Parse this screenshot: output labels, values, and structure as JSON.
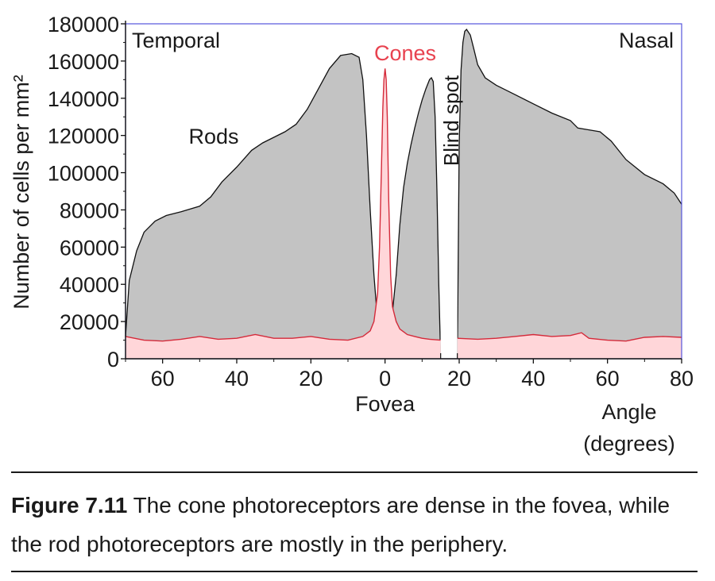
{
  "chart_data": {
    "type": "area",
    "ylabel": "Number of cells per mm²",
    "ylim": [
      0,
      180000
    ],
    "yticks": [
      0,
      20000,
      40000,
      60000,
      80000,
      100000,
      120000,
      140000,
      160000,
      180000
    ],
    "xlim": [
      -70,
      80
    ],
    "xticks": [
      -60,
      -40,
      -20,
      0,
      20,
      40,
      60,
      80
    ],
    "xtick_labels": [
      "60",
      "40",
      "20",
      "0",
      "20",
      "40",
      "60",
      "80"
    ],
    "xlabel_center": "Fovea",
    "xlabel_right": "Angle\n(degrees)",
    "side_labels": {
      "left": "Temporal",
      "right": "Nasal"
    },
    "annotations": {
      "rods": "Rods",
      "cones": "Cones",
      "blind_spot": "Blind spot"
    },
    "blind_spot_range": [
      15,
      19.5
    ],
    "colors": {
      "rods_fill": "#c3c3c3",
      "cones_fill": "#ffd6d9",
      "cones_line": "#d42a3a",
      "cones_label": "#e8424f",
      "axis": "#5555dd"
    },
    "series": [
      {
        "name": "Rods",
        "segments": [
          {
            "x": [
              -70,
              -69,
              -67,
              -65,
              -62,
              -59,
              -55,
              -50,
              -47,
              -44,
              -40,
              -36,
              -33,
              -30,
              -27,
              -24,
              -21,
              -18,
              -15,
              -12,
              -9,
              -7,
              -6,
              -5,
              -4,
              -3,
              -2,
              -1,
              -0.6
            ],
            "y": [
              12000,
              42000,
              58000,
              68000,
              74000,
              77000,
              79000,
              82000,
              87000,
              95000,
              103000,
              112000,
              116000,
              119000,
              122000,
              126000,
              134000,
              145000,
              156000,
              163000,
              164000,
              162000,
              150000,
              120000,
              80000,
              45000,
              20000,
              6000,
              0
            ]
          },
          {
            "x": [
              1.2,
              2,
              3,
              4,
              5,
              6,
              7,
              8,
              9,
              10,
              11,
              12,
              12.5,
              13,
              13.5,
              14,
              14.5,
              15
            ],
            "y": [
              0,
              25000,
              45000,
              72000,
              92000,
              105000,
              115000,
              124000,
              132000,
              139000,
              145000,
              150000,
              151000,
              149000,
              130000,
              90000,
              40000,
              0
            ]
          },
          {
            "x": [
              19.5,
              19.8,
              20,
              20.5,
              21,
              21.5,
              22,
              23,
              24,
              25,
              27,
              30,
              35,
              40,
              45,
              50,
              52,
              55,
              58,
              61,
              65,
              70,
              75,
              78,
              80
            ],
            "y": [
              0,
              70000,
              115000,
              155000,
              170000,
              176000,
              177000,
              174000,
              166000,
              158000,
              151000,
              147000,
              142000,
              137000,
              132000,
              128000,
              124000,
              123000,
              122000,
              117000,
              107000,
              99000,
              94000,
              89000,
              83000
            ]
          }
        ]
      },
      {
        "name": "Cones",
        "segments": [
          {
            "x": [
              -70,
              -65,
              -60,
              -55,
              -50,
              -45,
              -40,
              -35,
              -30,
              -25,
              -20,
              -15,
              -10,
              -6,
              -4,
              -3,
              -2,
              -1.5,
              -1,
              -0.6,
              -0.3,
              0,
              0.3,
              0.6,
              1,
              1.5,
              2,
              3,
              4,
              6,
              8,
              10,
              12,
              15
            ],
            "y": [
              12000,
              10000,
              9500,
              10500,
              12000,
              10500,
              11000,
              13000,
              11000,
              11000,
              12000,
              10500,
              10000,
              12000,
              15000,
              20000,
              35000,
              60000,
              100000,
              135000,
              150000,
              156000,
              150000,
              130000,
              85000,
              45000,
              28000,
              20000,
              16000,
              13000,
              12000,
              11000,
              10500,
              10000
            ]
          },
          {
            "x": [
              19.5,
              25,
              30,
              35,
              40,
              45,
              50,
              53,
              55,
              60,
              65,
              70,
              75,
              80
            ],
            "y": [
              11000,
              10500,
              11000,
              12000,
              13000,
              12000,
              12500,
              14000,
              11000,
              10000,
              9500,
              11500,
              12000,
              11500
            ]
          }
        ]
      }
    ]
  },
  "caption": {
    "figure_label": "Figure 7.11",
    "text": " The cone photoreceptors are dense in the fovea, while the rod photoreceptors are mostly in the periphery."
  }
}
